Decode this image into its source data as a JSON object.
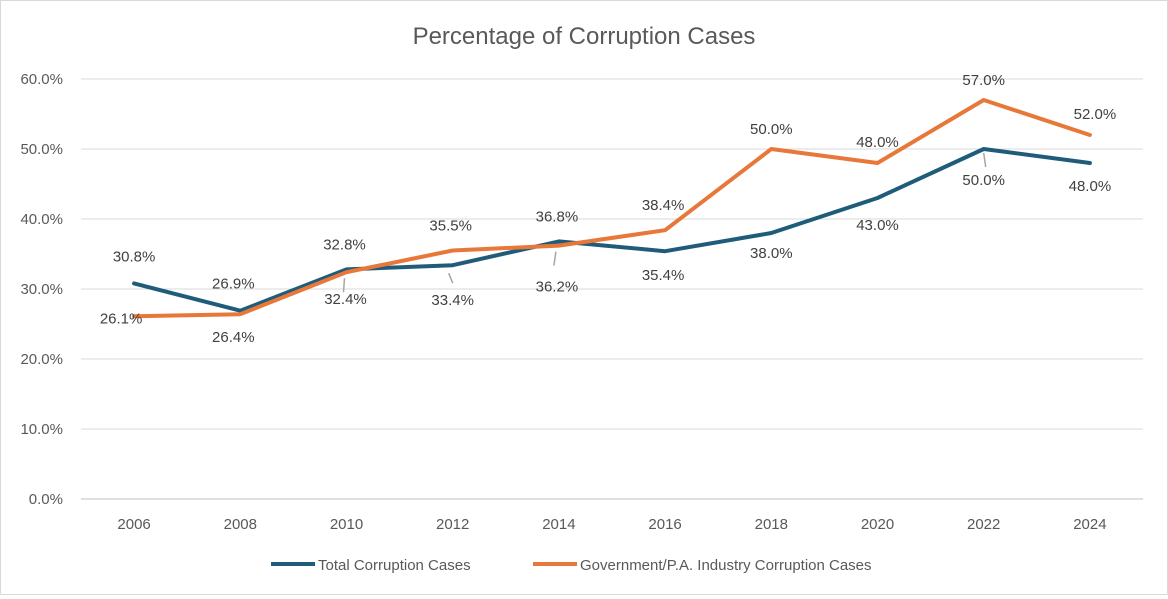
{
  "chart_data": {
    "type": "line",
    "title": "Percentage of Corruption Cases",
    "xlabel": "",
    "ylabel": "",
    "categories": [
      "2006",
      "2008",
      "2010",
      "2012",
      "2014",
      "2016",
      "2018",
      "2020",
      "2022",
      "2024"
    ],
    "ylim": [
      0,
      60
    ],
    "yticks": [
      "0.0%",
      "10.0%",
      "20.0%",
      "30.0%",
      "40.0%",
      "50.0%",
      "60.0%"
    ],
    "grid": true,
    "legend_position": "bottom",
    "series": [
      {
        "name": "Total Corruption Cases",
        "color": "#1f5c7a",
        "values": [
          30.8,
          26.9,
          32.8,
          33.4,
          36.8,
          35.4,
          38.0,
          43.0,
          50.0,
          48.0
        ],
        "labels": [
          "30.8%",
          "26.9%",
          "32.8%",
          "33.4%",
          "36.8%",
          "35.4%",
          "38.0%",
          "43.0%",
          "50.0%",
          "48.0%"
        ]
      },
      {
        "name": "Government/P.A. Industry Corruption Cases",
        "color": "#e8773a",
        "values": [
          26.1,
          26.4,
          32.4,
          35.5,
          36.2,
          38.4,
          50.0,
          48.0,
          57.0,
          52.0
        ],
        "labels": [
          "26.1%",
          "26.4%",
          "32.4%",
          "35.5%",
          "36.2%",
          "38.4%",
          "50.0%",
          "48.0%",
          "57.0%",
          "52.0%"
        ]
      }
    ]
  }
}
